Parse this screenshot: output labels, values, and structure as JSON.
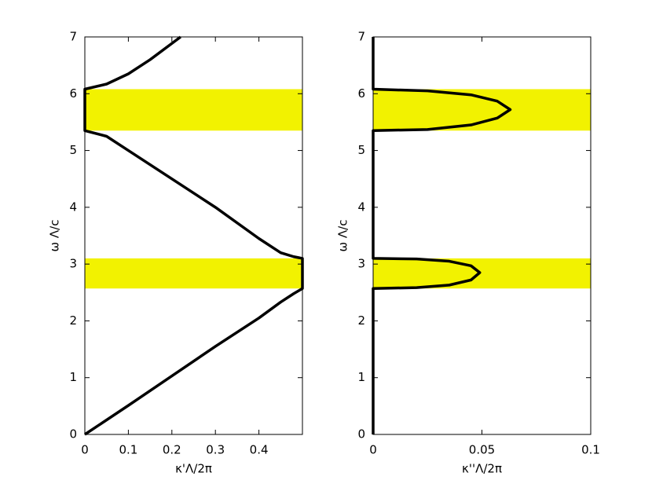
{
  "chart_data": [
    {
      "type": "line",
      "xlabel": "κ'Λ/2π",
      "ylabel": "ω Λ/c",
      "xlim": [
        0,
        0.5
      ],
      "ylim": [
        0,
        7
      ],
      "xticks": [
        0,
        0.1,
        0.2,
        0.3,
        0.4
      ],
      "yticks": [
        0,
        1,
        2,
        3,
        4,
        5,
        6,
        7
      ],
      "bands": [
        [
          2.57,
          3.1
        ],
        [
          5.35,
          6.08
        ]
      ],
      "band_color": "#f2f200",
      "series": [
        {
          "color": "#000000",
          "x": [
            0,
            0.1,
            0.2,
            0.3,
            0.4,
            0.45,
            0.48,
            0.5,
            0.5,
            0.48,
            0.45,
            0.4,
            0.3,
            0.2,
            0.1,
            0.05,
            0,
            0,
            0.05,
            0.1,
            0.15,
            0.22
          ],
          "values": [
            0,
            0.51,
            1.03,
            1.55,
            2.05,
            2.33,
            2.48,
            2.57,
            3.1,
            3.13,
            3.2,
            3.45,
            4.0,
            4.5,
            5.0,
            5.25,
            5.35,
            6.08,
            6.17,
            6.35,
            6.6,
            7.0
          ]
        }
      ]
    },
    {
      "type": "line",
      "xlabel": "κ''Λ/2π",
      "ylabel": "ω Λ/c",
      "xlim": [
        0,
        0.1
      ],
      "ylim": [
        0,
        7
      ],
      "xticks": [
        0,
        0.05,
        0.1
      ],
      "yticks": [
        0,
        1,
        2,
        3,
        4,
        5,
        6,
        7
      ],
      "bands": [
        [
          2.57,
          3.1
        ],
        [
          5.35,
          6.08
        ]
      ],
      "band_color": "#f2f200",
      "series": [
        {
          "color": "#000000",
          "x": [
            0,
            0,
            0.02,
            0.035,
            0.045,
            0.049,
            0.045,
            0.035,
            0.02,
            0,
            0,
            0.025,
            0.045,
            0.057,
            0.063,
            0.057,
            0.045,
            0.025,
            0,
            0
          ],
          "values": [
            0,
            2.57,
            2.585,
            2.63,
            2.72,
            2.85,
            2.97,
            3.05,
            3.09,
            3.1,
            5.35,
            5.37,
            5.45,
            5.57,
            5.72,
            5.87,
            5.98,
            6.05,
            6.08,
            7
          ]
        }
      ]
    }
  ]
}
